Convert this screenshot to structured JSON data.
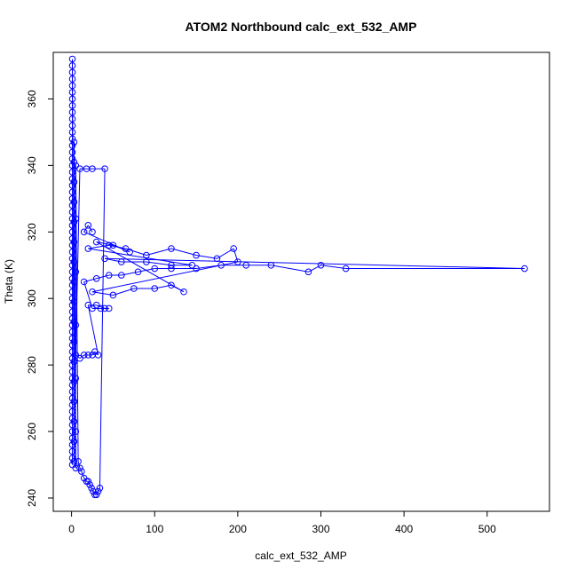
{
  "chart_data": {
    "type": "scatter",
    "title": "ATOM2 Northbound calc_ext_532_AMP",
    "xlabel": "calc_ext_532_AMP",
    "ylabel": "Theta (K)",
    "xlim": [
      -22,
      575
    ],
    "ylim": [
      236,
      374
    ],
    "x_ticks": [
      0,
      100,
      200,
      300,
      400,
      500
    ],
    "y_ticks": [
      240,
      260,
      280,
      300,
      320,
      340,
      360
    ],
    "grid": false,
    "legend": "none",
    "color": "#0000ff",
    "marker": "open-circle",
    "connected": true,
    "series": [
      {
        "points": [
          [
            1,
            250
          ],
          [
            1,
            252
          ],
          [
            1,
            254
          ],
          [
            1,
            256
          ],
          [
            1,
            258
          ],
          [
            1,
            260
          ],
          [
            1,
            262
          ],
          [
            1,
            264
          ],
          [
            1,
            266
          ],
          [
            1,
            268
          ],
          [
            1,
            270
          ],
          [
            1,
            272
          ],
          [
            1,
            274
          ],
          [
            1,
            276
          ],
          [
            1,
            278
          ],
          [
            1,
            280
          ],
          [
            1,
            282
          ],
          [
            1,
            284
          ],
          [
            1,
            286
          ],
          [
            1,
            288
          ],
          [
            1,
            290
          ],
          [
            1,
            292
          ],
          [
            1,
            294
          ],
          [
            1,
            296
          ],
          [
            1,
            298
          ],
          [
            1,
            300
          ],
          [
            1,
            302
          ],
          [
            1,
            304
          ],
          [
            1,
            306
          ],
          [
            1,
            308
          ],
          [
            1,
            310
          ],
          [
            1,
            312
          ],
          [
            1,
            314
          ],
          [
            1,
            316
          ],
          [
            1,
            318
          ],
          [
            1,
            320
          ],
          [
            1,
            322
          ],
          [
            1,
            324
          ],
          [
            1,
            326
          ],
          [
            1,
            328
          ],
          [
            1,
            330
          ],
          [
            1,
            332
          ],
          [
            1,
            334
          ],
          [
            1,
            336
          ],
          [
            1,
            338
          ],
          [
            1,
            340
          ],
          [
            1,
            342
          ],
          [
            1,
            344
          ],
          [
            1,
            346
          ],
          [
            1,
            348
          ],
          [
            1,
            350
          ],
          [
            1,
            352
          ],
          [
            1,
            354
          ],
          [
            1,
            356
          ],
          [
            1,
            358
          ],
          [
            1,
            360
          ],
          [
            1,
            362
          ],
          [
            1,
            364
          ],
          [
            1,
            366
          ],
          [
            1,
            368
          ],
          [
            1,
            370
          ],
          [
            1,
            372
          ],
          [
            3,
            251
          ],
          [
            3,
            257
          ],
          [
            3,
            263
          ],
          [
            3,
            269
          ],
          [
            3,
            275
          ],
          [
            3,
            281
          ],
          [
            3,
            287
          ],
          [
            3,
            293
          ],
          [
            3,
            299
          ],
          [
            3,
            305
          ],
          [
            3,
            311
          ],
          [
            3,
            317
          ],
          [
            3,
            323
          ],
          [
            3,
            329
          ],
          [
            3,
            335
          ],
          [
            3,
            341
          ],
          [
            3,
            347
          ],
          [
            5,
            249
          ],
          [
            5,
            260
          ],
          [
            5,
            276
          ],
          [
            5,
            292
          ],
          [
            5,
            308
          ],
          [
            5,
            324
          ],
          [
            5,
            340
          ],
          [
            8,
            251
          ],
          [
            10,
            249
          ],
          [
            12,
            248
          ],
          [
            15,
            246
          ],
          [
            18,
            245
          ],
          [
            20,
            245
          ],
          [
            22,
            244
          ],
          [
            24,
            243
          ],
          [
            26,
            242
          ],
          [
            28,
            241
          ],
          [
            30,
            241
          ],
          [
            32,
            242
          ],
          [
            34,
            243
          ],
          [
            40,
            339
          ],
          [
            25,
            339
          ],
          [
            18,
            339
          ],
          [
            10,
            339
          ],
          [
            5,
            283
          ],
          [
            10,
            282
          ],
          [
            15,
            283
          ],
          [
            20,
            283
          ],
          [
            25,
            283
          ],
          [
            28,
            284
          ],
          [
            32,
            283
          ],
          [
            20,
            298
          ],
          [
            30,
            298
          ],
          [
            40,
            297
          ],
          [
            45,
            297
          ],
          [
            35,
            297
          ],
          [
            25,
            297
          ],
          [
            15,
            305
          ],
          [
            30,
            306
          ],
          [
            45,
            307
          ],
          [
            60,
            307
          ],
          [
            80,
            308
          ],
          [
            100,
            309
          ],
          [
            120,
            309
          ],
          [
            150,
            309
          ],
          [
            180,
            310
          ],
          [
            210,
            310
          ],
          [
            240,
            310
          ],
          [
            285,
            308
          ],
          [
            300,
            310
          ],
          [
            330,
            309
          ],
          [
            545,
            309
          ],
          [
            40,
            312
          ],
          [
            60,
            311
          ],
          [
            90,
            311
          ],
          [
            120,
            310
          ],
          [
            145,
            310
          ],
          [
            20,
            315
          ],
          [
            45,
            316
          ],
          [
            65,
            315
          ],
          [
            90,
            313
          ],
          [
            120,
            315
          ],
          [
            150,
            313
          ],
          [
            175,
            312
          ],
          [
            195,
            315
          ],
          [
            200,
            311
          ],
          [
            25,
            302
          ],
          [
            50,
            301
          ],
          [
            75,
            303
          ],
          [
            100,
            303
          ],
          [
            120,
            304
          ],
          [
            135,
            302
          ],
          [
            30,
            317
          ],
          [
            50,
            316
          ],
          [
            70,
            314
          ],
          [
            15,
            320
          ],
          [
            20,
            322
          ],
          [
            25,
            320
          ]
        ]
      }
    ]
  }
}
